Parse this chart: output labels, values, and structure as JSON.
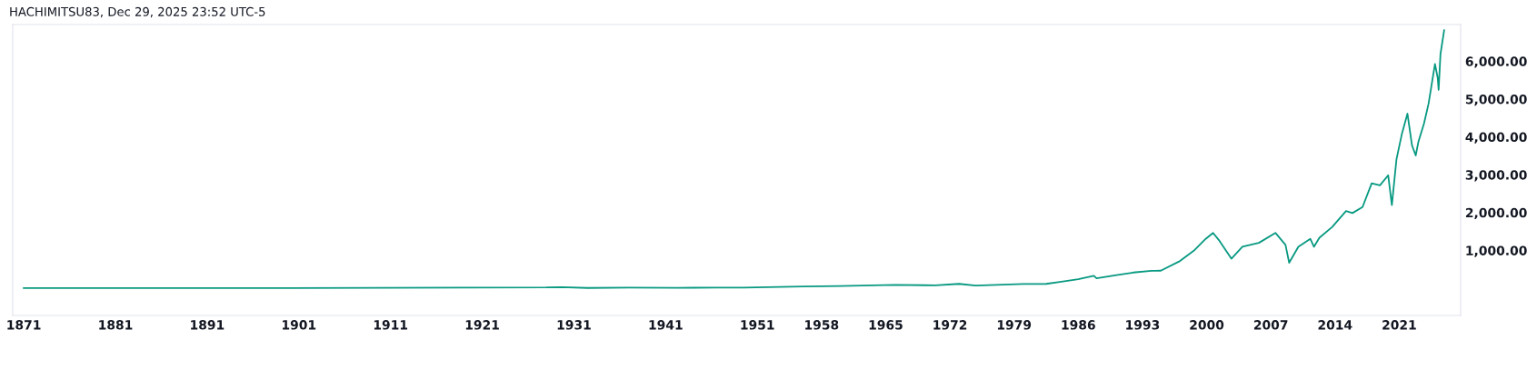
{
  "chart_data": {
    "type": "line",
    "title": "HACHIMITSU83, Dec 29, 2025 23:52 UTC-5",
    "series": [
      {
        "color": "#089981",
        "x": [
          1871,
          1900,
          1928,
          1929.7,
          1932.5,
          1937,
          1942.3,
          1946.4,
          1949.5,
          1956,
          1960,
          1966,
          1970.4,
          1973,
          1974.8,
          1980,
          1982.5,
          1984,
          1986,
          1987.7,
          1988,
          1990,
          1992,
          1994,
          1995.0,
          1997.0,
          1998.6,
          1999.9,
          2000.7,
          2001.4,
          2002.7,
          2003.9,
          2005.7,
          2007.5,
          2008.6,
          2009.0,
          2010.0,
          2011.3,
          2011.7,
          2012.3,
          2013.7,
          2015.2,
          2015.9,
          2017.0,
          2018.0,
          2018.9,
          2019.8,
          2020.2,
          2020.7,
          2021.3,
          2021.9,
          2022.4,
          2022.8,
          2023.1,
          2023.7,
          2024.2,
          2024.9,
          2025.2,
          2025.3,
          2025.5,
          2025.9
        ],
        "values": [
          4,
          6,
          20,
          30,
          7,
          17,
          9,
          18,
          15,
          45,
          57,
          90,
          75,
          115,
          70,
          110,
          115,
          165,
          240,
          330,
          260,
          340,
          415,
          460,
          464,
          706,
          990,
          1305,
          1462,
          1252,
          780,
          1095,
          1200,
          1462,
          1147,
          674,
          1095,
          1305,
          1095,
          1336,
          1620,
          2040,
          1987,
          2145,
          2775,
          2720,
          2985,
          2198,
          3405,
          4088,
          4614,
          3773,
          3510,
          3878,
          4351,
          4876,
          5926,
          5559,
          5244,
          6189,
          6819
        ]
      }
    ],
    "xlim": [
      1869.8,
      2027.7
    ],
    "xticks": [
      1871,
      1881,
      1891,
      1901,
      1911,
      1921,
      1931,
      1941,
      1951,
      1958,
      1965,
      1972,
      1979,
      1986,
      1993,
      2000,
      2007,
      2014,
      2021
    ],
    "ylim": [
      -720,
      6970
    ],
    "yticks": [
      {
        "value": 1000,
        "label": "1,000.00"
      },
      {
        "value": 2000,
        "label": "2,000.00"
      },
      {
        "value": 3000,
        "label": "3,000.00"
      },
      {
        "value": 4000,
        "label": "4,000.00"
      },
      {
        "value": 5000,
        "label": "5,000.00"
      },
      {
        "value": 6000,
        "label": "6,000.00"
      }
    ]
  }
}
